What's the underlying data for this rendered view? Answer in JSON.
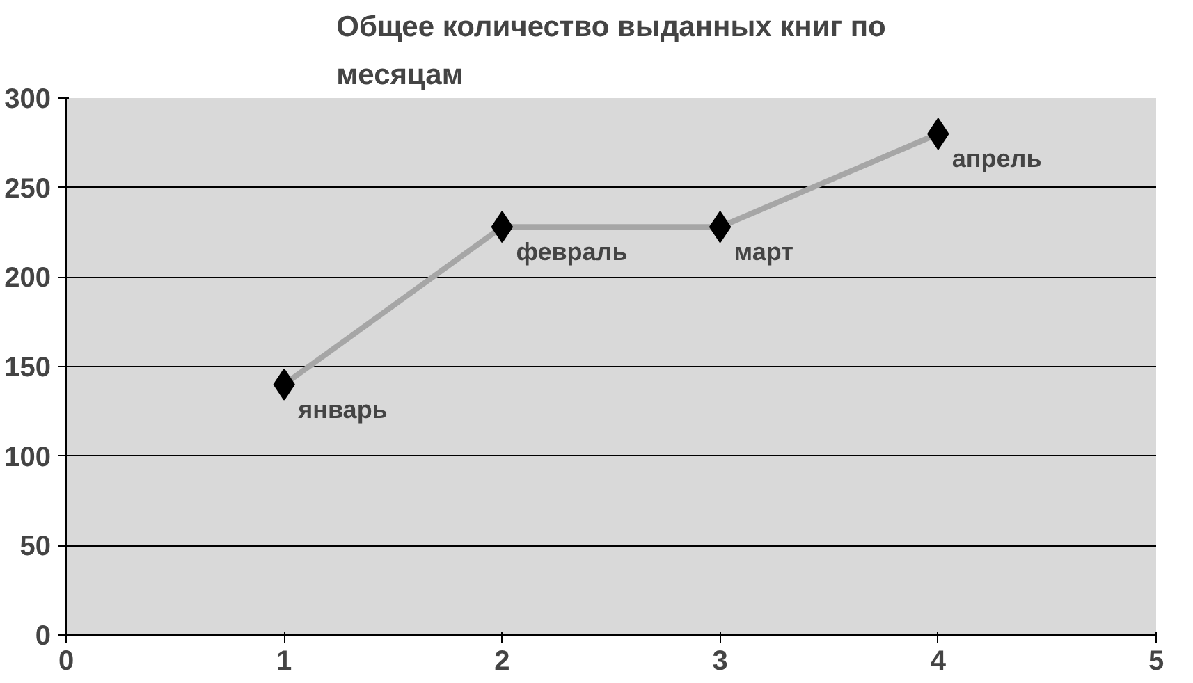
{
  "chart_data": {
    "type": "line",
    "title": "Общее количество выданных книг по месяцам",
    "x": [
      1,
      2,
      3,
      4
    ],
    "series": [
      {
        "color": "#a6a6a6",
        "values": [
          140,
          228,
          228,
          280
        ]
      }
    ],
    "marker": "diamond",
    "annotations": [
      {
        "text": "январь",
        "x": 1,
        "y": 140
      },
      {
        "text": "февраль",
        "x": 2,
        "y": 228
      },
      {
        "text": "март",
        "x": 3,
        "y": 228
      },
      {
        "text": "апрель",
        "x": 4,
        "y": 280
      }
    ],
    "xlim": [
      0,
      5
    ],
    "xticks": [
      0,
      1,
      2,
      3,
      4,
      5
    ],
    "ylim": [
      0,
      300
    ],
    "yticks": [
      0,
      50,
      100,
      150,
      200,
      250,
      300
    ],
    "grid": "y"
  }
}
